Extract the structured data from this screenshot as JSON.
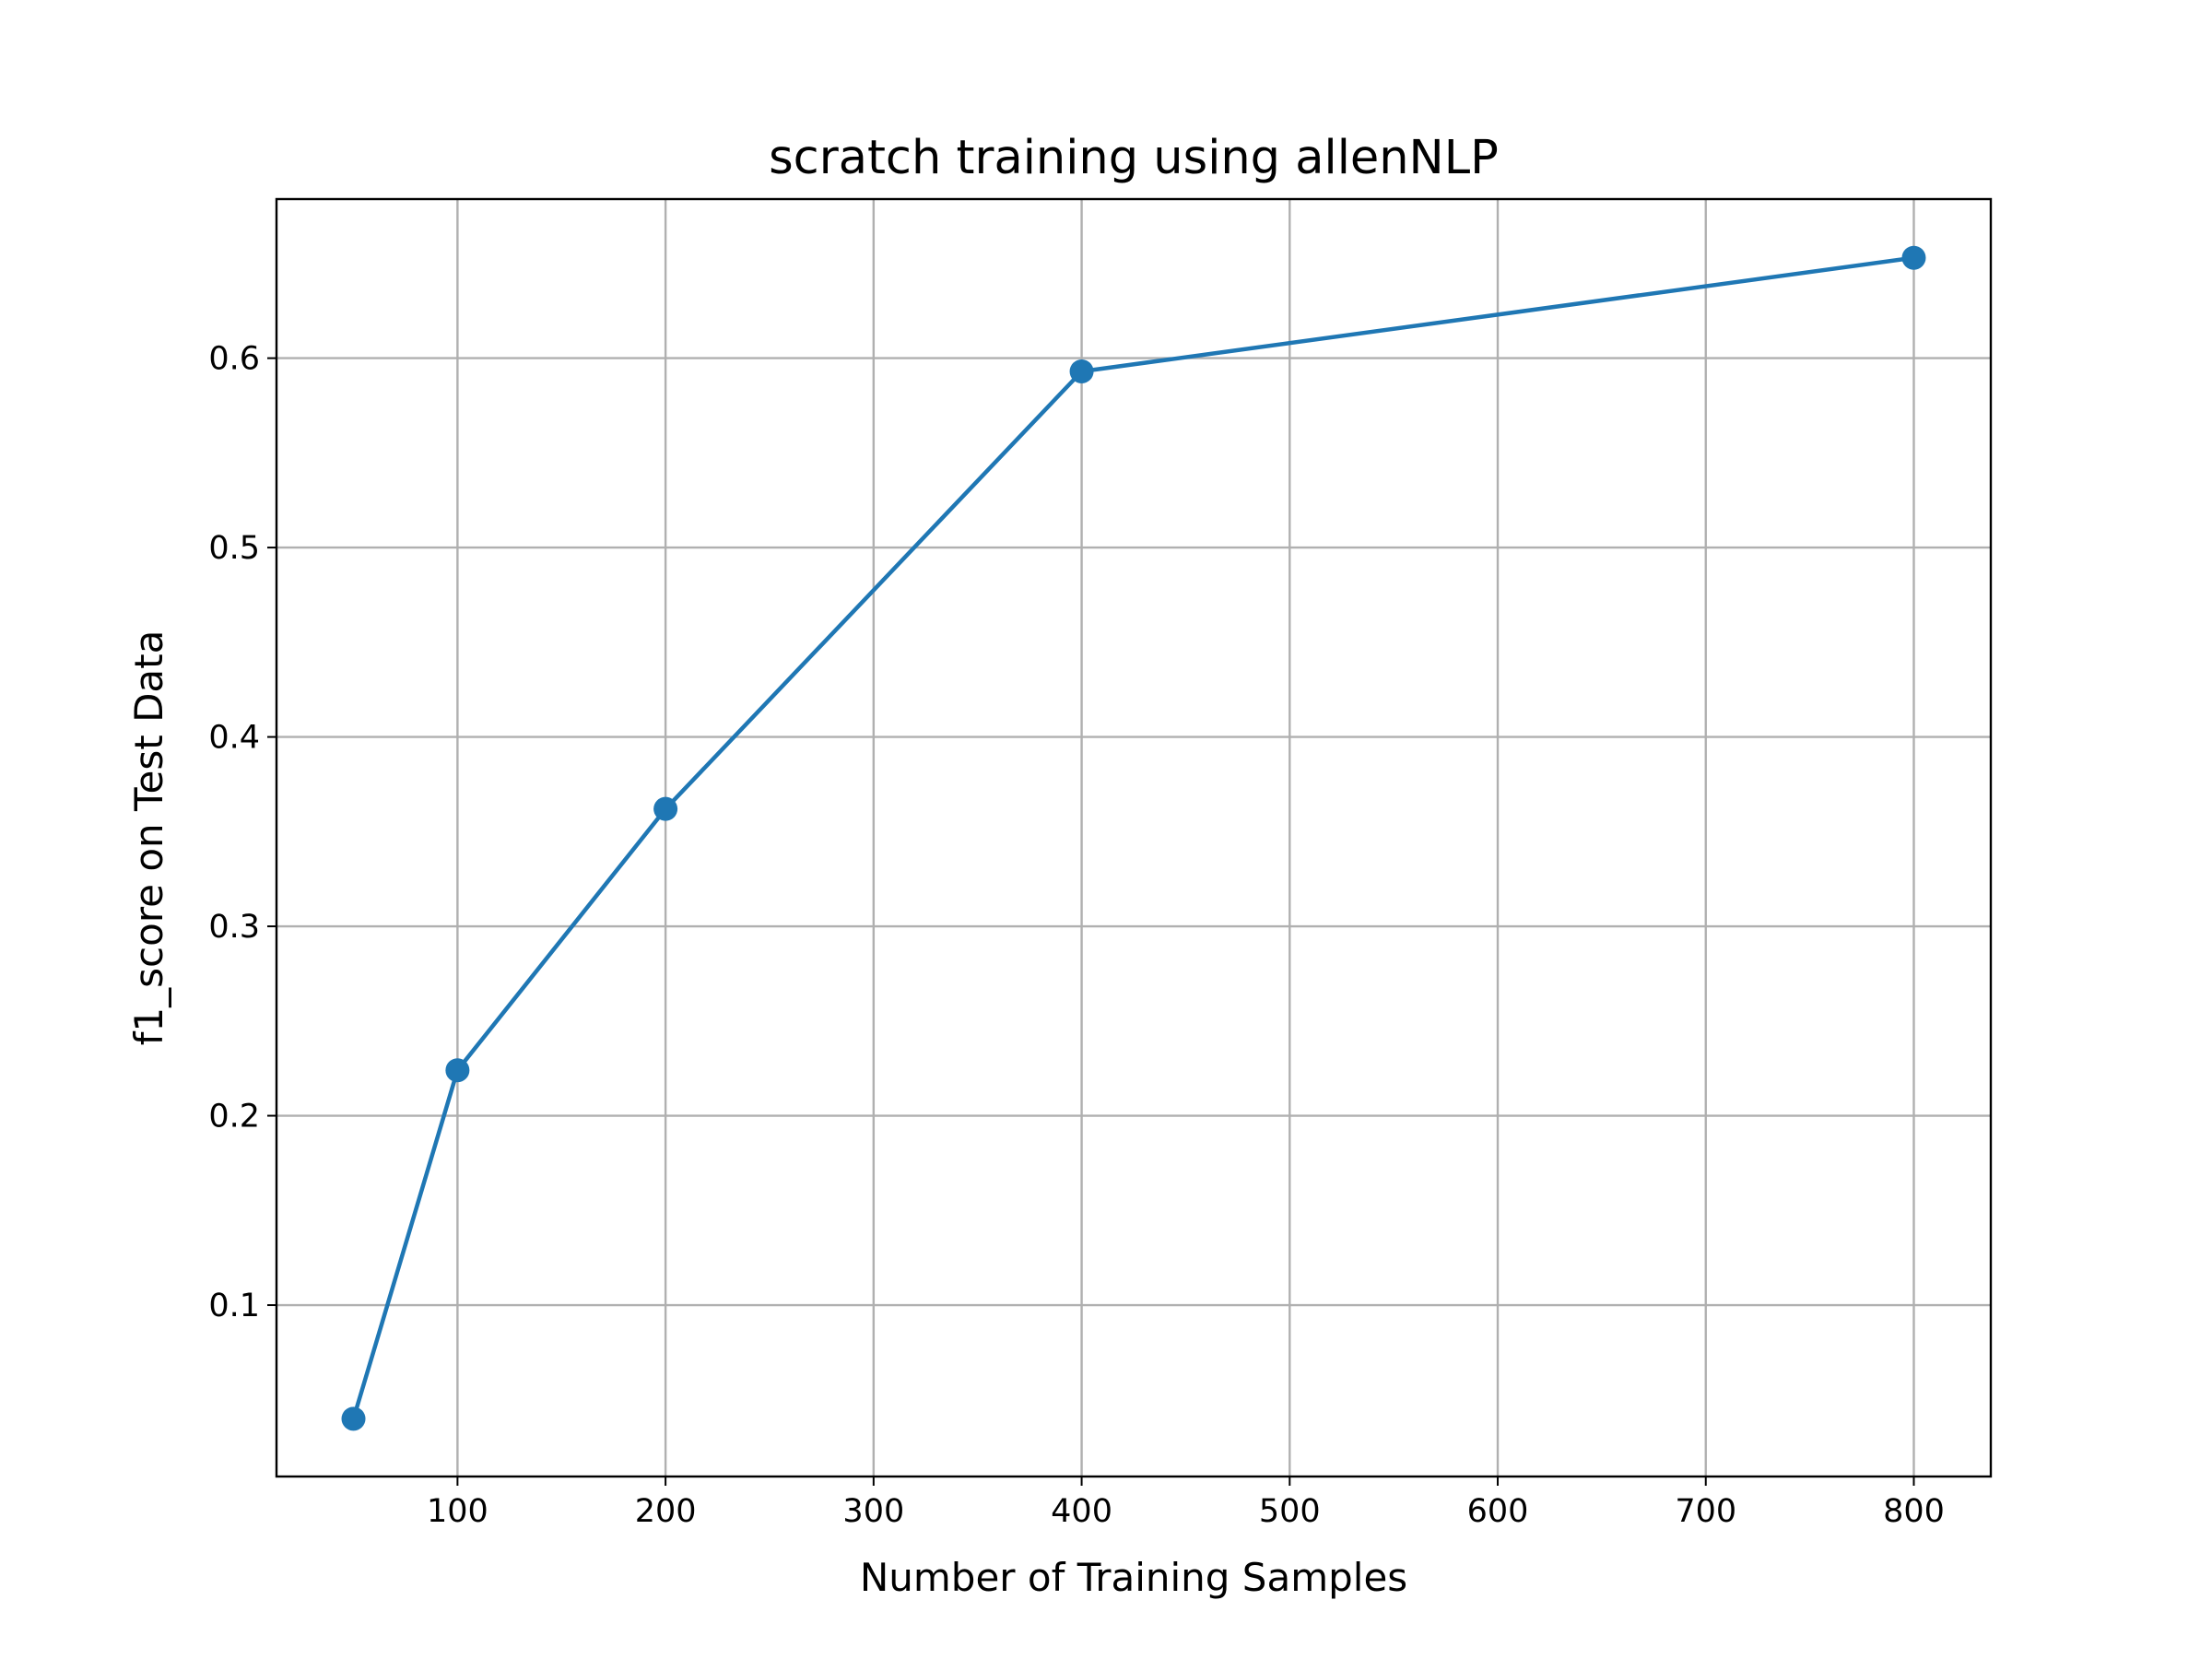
{
  "chart_data": {
    "type": "line",
    "title": "scratch training using allenNLP",
    "xlabel": "Number of Training Samples",
    "ylabel": "f1_score on Test Data",
    "xlim": [
      13,
      837
    ],
    "ylim": [
      0.0095,
      0.684
    ],
    "xticks": [
      100,
      200,
      300,
      400,
      500,
      600,
      700,
      800
    ],
    "xtick_labels": [
      "100",
      "200",
      "300",
      "400",
      "500",
      "600",
      "700",
      "800"
    ],
    "yticks": [
      0.1,
      0.2,
      0.3,
      0.4,
      0.5,
      0.6
    ],
    "ytick_labels": [
      "0.1",
      "0.2",
      "0.3",
      "0.4",
      "0.5",
      "0.6"
    ],
    "grid": true,
    "series": [
      {
        "x": [
          50,
          100,
          200,
          400,
          800
        ],
        "y": [
          0.04,
          0.224,
          0.362,
          0.593,
          0.653
        ],
        "color": "#1f77b4",
        "marker": "circle"
      }
    ]
  }
}
